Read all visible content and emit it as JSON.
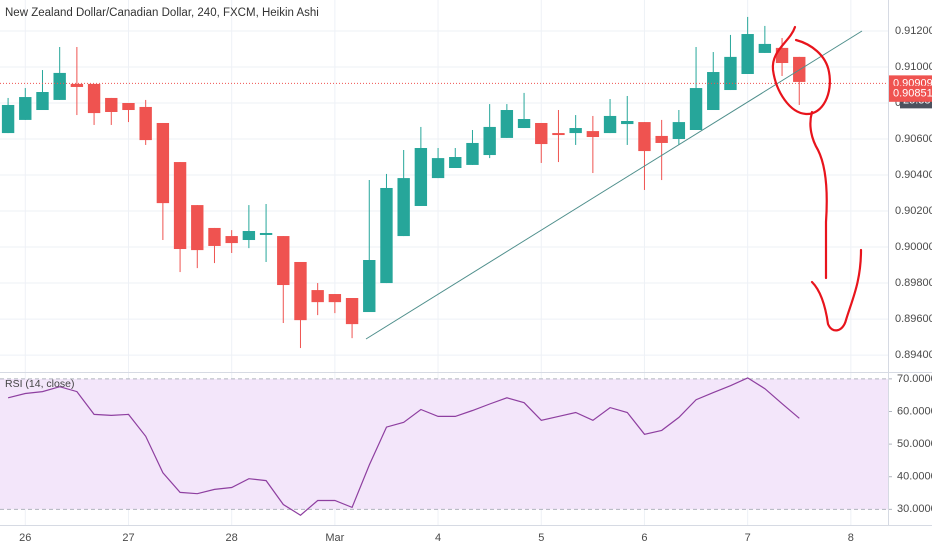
{
  "chart_data": [
    {
      "type": "candlestick",
      "title": "New Zealand Dollar/Canadian Dollar, 240, FXCM, Heikin Ashi",
      "up_color": "#26a69a",
      "down_color": "#ef5350",
      "grid": true,
      "open": [
        0.90633,
        0.90706,
        0.90761,
        0.90817,
        0.90906,
        0.90906,
        0.90828,
        0.908,
        0.90778,
        0.90689,
        0.90472,
        0.90233,
        0.90106,
        0.90061,
        0.90039,
        0.90067,
        0.90061,
        0.89917,
        0.89761,
        0.89739,
        0.89717,
        0.89639,
        0.898,
        0.90061,
        0.90228,
        0.90383,
        0.90439,
        0.90456,
        0.90511,
        0.90606,
        0.90661,
        0.90689,
        0.90633,
        0.90633,
        0.90644,
        0.90633,
        0.90683,
        0.90694,
        0.90617,
        0.906,
        0.9065,
        0.90761,
        0.90872,
        0.90961,
        0.91078,
        0.91106,
        0.91056
      ],
      "high": [
        0.90828,
        0.90883,
        0.90983,
        0.91111,
        0.91111,
        0.90906,
        0.90828,
        0.908,
        0.90817,
        0.90689,
        0.90472,
        0.90233,
        0.90106,
        0.90094,
        0.90233,
        0.90239,
        0.90061,
        0.89917,
        0.898,
        0.89739,
        0.89717,
        0.90372,
        0.90406,
        0.90539,
        0.90667,
        0.9055,
        0.9055,
        0.9065,
        0.90794,
        0.90794,
        0.90856,
        0.90689,
        0.90761,
        0.90733,
        0.90728,
        0.90822,
        0.90839,
        0.90694,
        0.90706,
        0.90761,
        0.91111,
        0.91083,
        0.91178,
        0.91278,
        0.91228,
        0.91161,
        0.91056
      ],
      "low": [
        0.90633,
        0.90706,
        0.90761,
        0.90817,
        0.90733,
        0.90678,
        0.90678,
        0.90694,
        0.90567,
        0.90039,
        0.89861,
        0.89883,
        0.89911,
        0.89967,
        0.89994,
        0.89917,
        0.89578,
        0.89439,
        0.89622,
        0.89633,
        0.89494,
        0.89639,
        0.898,
        0.90061,
        0.90228,
        0.90383,
        0.90439,
        0.90456,
        0.90494,
        0.90606,
        0.90661,
        0.90467,
        0.90472,
        0.90567,
        0.90411,
        0.90633,
        0.90567,
        0.90317,
        0.90372,
        0.90567,
        0.9065,
        0.90761,
        0.90872,
        0.90961,
        0.91078,
        0.9095,
        0.90789
      ],
      "close": [
        0.90789,
        0.90833,
        0.90861,
        0.90967,
        0.90889,
        0.90744,
        0.9075,
        0.90761,
        0.90594,
        0.90244,
        0.89989,
        0.89983,
        0.90006,
        0.90022,
        0.90089,
        0.90078,
        0.89789,
        0.89594,
        0.89694,
        0.89694,
        0.89572,
        0.89928,
        0.90328,
        0.90383,
        0.9055,
        0.90494,
        0.905,
        0.90578,
        0.90667,
        0.90761,
        0.90711,
        0.90572,
        0.90622,
        0.90661,
        0.90611,
        0.90728,
        0.907,
        0.90533,
        0.90578,
        0.90694,
        0.90883,
        0.90972,
        0.91056,
        0.91183,
        0.91128,
        0.91022,
        0.90917
      ],
      "xlim": [
        -0.47,
        51.16
      ],
      "xticks": [
        {
          "value": 1,
          "label": "26"
        },
        {
          "value": 7,
          "label": "27"
        },
        {
          "value": 13,
          "label": "28"
        },
        {
          "value": 19,
          "label": "Mar"
        },
        {
          "value": 25,
          "label": "4"
        },
        {
          "value": 31,
          "label": "5"
        },
        {
          "value": 37,
          "label": "6"
        },
        {
          "value": 43,
          "label": "7"
        },
        {
          "value": 49,
          "label": "8"
        }
      ],
      "ylim": [
        0.89306,
        0.91372
      ],
      "yticks": [
        {
          "value": 0.912,
          "label": "0.91200"
        },
        {
          "value": 0.91,
          "label": "0.91000"
        },
        {
          "value": 0.908,
          "label": "0.90800"
        },
        {
          "value": 0.906,
          "label": "0.90600"
        },
        {
          "value": 0.904,
          "label": "0.90400"
        },
        {
          "value": 0.902,
          "label": "0.90200"
        },
        {
          "value": 0.9,
          "label": "0.90000"
        },
        {
          "value": 0.898,
          "label": "0.89800"
        },
        {
          "value": 0.896,
          "label": "0.89600"
        },
        {
          "value": 0.894,
          "label": "0.89400"
        }
      ],
      "price_labels": [
        {
          "value": 0.90909,
          "label": "0.90909"
        },
        {
          "value": 0.90851,
          "label": "0.90851"
        }
      ],
      "price_label_color": "#ef5350",
      "countdown": "25:38"
    },
    {
      "type": "line",
      "title": "RSI (14, close)",
      "color": "#8e3fa0",
      "band": [
        30,
        70
      ],
      "band_color": "#f3e6fa",
      "values": [
        64.2,
        65.5,
        66.1,
        67.6,
        66.1,
        59.1,
        58.8,
        59.1,
        52.4,
        41.2,
        35.2,
        34.8,
        36.1,
        36.7,
        39.4,
        38.8,
        31.5,
        28.2,
        32.7,
        32.7,
        30.6,
        43.6,
        55.2,
        56.7,
        60.6,
        58.5,
        58.5,
        60.3,
        62.3,
        64.2,
        62.7,
        57.3,
        58.5,
        59.7,
        57.3,
        61.2,
        59.7,
        53,
        54.2,
        58.2,
        63.6,
        65.8,
        67.9,
        70.3,
        67,
        62.4,
        57.9
      ],
      "ylim": [
        25.2,
        71.8
      ],
      "yticks": [
        {
          "value": 70,
          "label": "70.0000"
        },
        {
          "value": 60,
          "label": "60.0000"
        },
        {
          "value": 50,
          "label": "50.0000"
        },
        {
          "value": 40,
          "label": "40.0000"
        },
        {
          "value": 30,
          "label": "30.0000"
        }
      ]
    }
  ]
}
